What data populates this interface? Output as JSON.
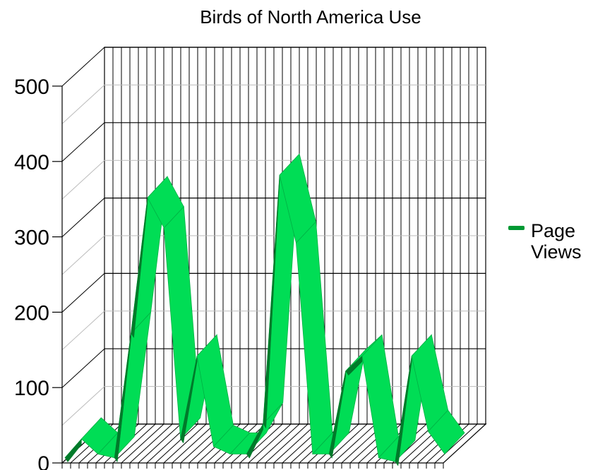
{
  "chart_data": {
    "type": "area",
    "style": "3d-ribbon",
    "title": "Birds of North America Use",
    "xlabel": "",
    "ylabel": "",
    "ylim": [
      0,
      500
    ],
    "yticks": [
      "0",
      "100",
      "200",
      "300",
      "400",
      "500"
    ],
    "grid": true,
    "legend_position": "right",
    "series": [
      {
        "name": "Page Views",
        "color": "#00dd55",
        "dark_color": "#007a2a",
        "legend_color": "#009933",
        "values": [
          5,
          30,
          10,
          5,
          170,
          350,
          310,
          30,
          140,
          20,
          10,
          10,
          50,
          380,
          290,
          10,
          10,
          120,
          140,
          5,
          0,
          140,
          40,
          10
        ]
      }
    ]
  }
}
